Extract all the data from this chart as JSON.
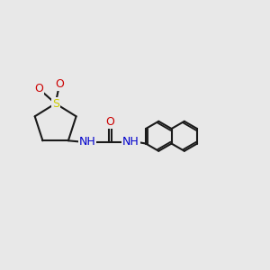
{
  "background_color": "#e8e8e8",
  "bond_color": "#1a1a1a",
  "S_color": "#cccc00",
  "O_color": "#cc0000",
  "N_color": "#0000cc",
  "line_width": 1.5,
  "font_size_atom": 9,
  "figsize": [
    3.0,
    3.0
  ],
  "dpi": 100,
  "xlim": [
    0,
    10
  ],
  "ylim": [
    0,
    10
  ]
}
